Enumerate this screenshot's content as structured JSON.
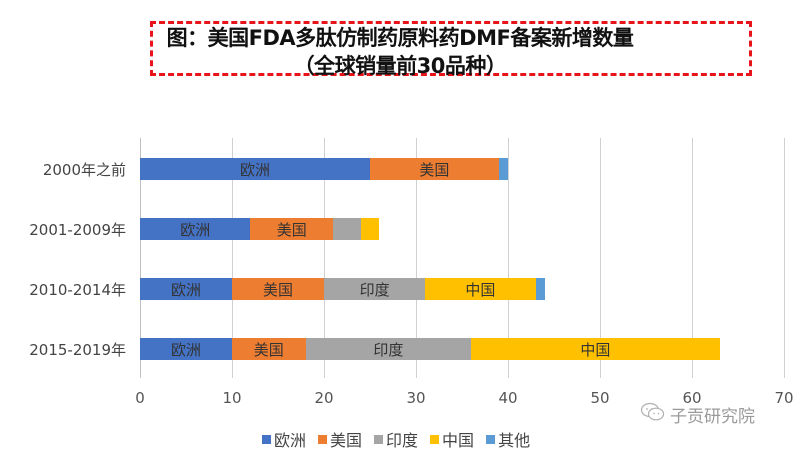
{
  "title": {
    "line1": "图：美国FDA多肽仿制药原料药DMF备案新增数量",
    "line2": "（全球销量前30品种）"
  },
  "colors": {
    "europe": "#4472c4",
    "usa": "#ed7d31",
    "india": "#a5a5a5",
    "china": "#ffc000",
    "other": "#5b9bd5"
  },
  "legend": [
    "欧洲",
    "美国",
    "印度",
    "中国",
    "其他"
  ],
  "watermark": "子贡研究院",
  "chart_data": {
    "type": "bar",
    "orientation": "horizontal",
    "stacked": true,
    "title": "图：美国FDA多肽仿制药原料药DMF备案新增数量（全球销量前30品种）",
    "categories": [
      "2000年之前",
      "2001-2009年",
      "2010-2014年",
      "2015-2019年"
    ],
    "series": [
      {
        "name": "欧洲",
        "values": [
          25,
          12,
          10,
          10
        ]
      },
      {
        "name": "美国",
        "values": [
          14,
          9,
          10,
          8
        ]
      },
      {
        "name": "印度",
        "values": [
          0,
          3,
          11,
          18
        ]
      },
      {
        "name": "中国",
        "values": [
          0,
          2,
          12,
          27
        ]
      },
      {
        "name": "其他",
        "values": [
          1,
          0,
          1,
          0
        ]
      }
    ],
    "segment_labels_shown": [
      [
        "欧洲",
        "美国",
        "",
        "",
        ""
      ],
      [
        "欧洲",
        "美国",
        "",
        "",
        ""
      ],
      [
        "欧洲",
        "美国",
        "印度",
        "中国",
        ""
      ],
      [
        "欧洲",
        "美国",
        "印度",
        "中国",
        ""
      ]
    ],
    "xlabel": "",
    "ylabel": "",
    "xlim": [
      0,
      70
    ],
    "xticks": [
      0,
      10,
      20,
      30,
      40,
      50,
      60,
      70
    ],
    "grid": true,
    "legend_position": "bottom"
  }
}
